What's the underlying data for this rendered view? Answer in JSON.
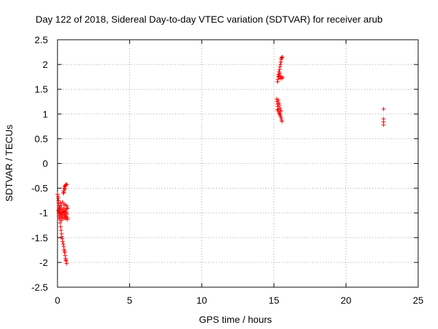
{
  "chart_data": {
    "type": "scatter",
    "title": "Day 122 of 2018, Sidereal Day-to-day VTEC variation (SDTVAR) for receiver arub",
    "xlabel": "GPS time / hours",
    "ylabel": "SDTVAR / TECUs",
    "xlim": [
      0,
      25
    ],
    "ylim": [
      -2.5,
      2.5
    ],
    "xticks": [
      0,
      5,
      10,
      15,
      20,
      25
    ],
    "xtick_labels": [
      "0",
      "5",
      "10",
      "15",
      "20",
      "25"
    ],
    "yticks": [
      -2.5,
      -2,
      -1.5,
      -1,
      -0.5,
      0,
      0.5,
      1,
      1.5,
      2,
      2.5
    ],
    "ytick_labels": [
      "-2.5",
      "-2",
      "-1.5",
      "-1",
      "-0.5",
      "0",
      "0.5",
      "1",
      "1.5",
      "2",
      "2.5"
    ],
    "grid": true,
    "marker": "+",
    "marker_color": "#ff0000",
    "series": [
      {
        "name": "SDTVAR",
        "points": [
          [
            0.0,
            -0.62
          ],
          [
            0.03,
            -0.66
          ],
          [
            0.05,
            -0.7
          ],
          [
            0.07,
            -0.75
          ],
          [
            0.08,
            -0.8
          ],
          [
            0.1,
            -0.85
          ],
          [
            0.12,
            -0.9
          ],
          [
            0.13,
            -0.95
          ],
          [
            0.15,
            -1.0
          ],
          [
            0.17,
            -1.05
          ],
          [
            0.05,
            -0.95
          ],
          [
            0.08,
            -1.0
          ],
          [
            0.1,
            -1.08
          ],
          [
            0.12,
            -1.12
          ],
          [
            0.14,
            -0.98
          ],
          [
            0.16,
            -0.92
          ],
          [
            0.18,
            -0.88
          ],
          [
            0.2,
            -0.95
          ],
          [
            0.22,
            -1.02
          ],
          [
            0.24,
            -1.1
          ],
          [
            0.26,
            -1.15
          ],
          [
            0.28,
            -1.05
          ],
          [
            0.3,
            -0.98
          ],
          [
            0.32,
            -0.93
          ],
          [
            0.34,
            -1.0
          ],
          [
            0.36,
            -1.08
          ],
          [
            0.38,
            -1.12
          ],
          [
            0.4,
            -1.02
          ],
          [
            0.42,
            -0.95
          ],
          [
            0.44,
            -0.9
          ],
          [
            0.46,
            -0.97
          ],
          [
            0.48,
            -1.05
          ],
          [
            0.5,
            -1.1
          ],
          [
            0.52,
            -1.0
          ],
          [
            0.54,
            -0.94
          ],
          [
            0.56,
            -1.06
          ],
          [
            0.58,
            -1.12
          ],
          [
            0.6,
            -1.08
          ],
          [
            0.62,
            -0.98
          ],
          [
            0.64,
            -0.92
          ],
          [
            0.66,
            -1.02
          ],
          [
            0.68,
            -1.1
          ],
          [
            0.7,
            -1.13
          ],
          [
            0.2,
            -0.8
          ],
          [
            0.25,
            -0.85
          ],
          [
            0.35,
            -0.78
          ],
          [
            0.45,
            -0.82
          ],
          [
            0.55,
            -0.84
          ],
          [
            0.65,
            -0.86
          ],
          [
            0.7,
            -0.9
          ],
          [
            0.18,
            -1.2
          ],
          [
            0.22,
            -1.28
          ],
          [
            0.25,
            -1.35
          ],
          [
            0.28,
            -1.42
          ],
          [
            0.3,
            -1.48
          ],
          [
            0.33,
            -1.52
          ],
          [
            0.36,
            -1.58
          ],
          [
            0.4,
            -1.63
          ],
          [
            0.43,
            -1.68
          ],
          [
            0.46,
            -1.74
          ],
          [
            0.5,
            -1.8
          ],
          [
            0.53,
            -1.86
          ],
          [
            0.56,
            -1.92
          ],
          [
            0.6,
            -1.97
          ],
          [
            0.63,
            -2.02
          ],
          [
            0.48,
            -1.77
          ],
          [
            0.58,
            -1.95
          ],
          [
            0.4,
            -0.6
          ],
          [
            0.43,
            -0.55
          ],
          [
            0.46,
            -0.5
          ],
          [
            0.5,
            -0.47
          ],
          [
            0.53,
            -0.45
          ],
          [
            0.56,
            -0.44
          ],
          [
            0.6,
            -0.43
          ],
          [
            0.63,
            -0.42
          ],
          [
            0.45,
            -0.58
          ],
          [
            0.52,
            -0.52
          ],
          [
            15.25,
            1.65
          ],
          [
            15.28,
            1.7
          ],
          [
            15.3,
            1.75
          ],
          [
            15.32,
            1.8
          ],
          [
            15.35,
            1.85
          ],
          [
            15.38,
            1.78
          ],
          [
            15.4,
            1.9
          ],
          [
            15.42,
            1.95
          ],
          [
            15.45,
            2.0
          ],
          [
            15.48,
            2.05
          ],
          [
            15.5,
            2.1
          ],
          [
            15.52,
            2.13
          ],
          [
            15.55,
            2.14
          ],
          [
            15.58,
            2.15
          ],
          [
            15.45,
            1.72
          ],
          [
            15.5,
            1.75
          ],
          [
            15.55,
            1.72
          ],
          [
            15.6,
            1.74
          ],
          [
            15.35,
            1.76
          ],
          [
            15.42,
            1.82
          ],
          [
            15.2,
            1.3
          ],
          [
            15.22,
            1.25
          ],
          [
            15.25,
            1.2
          ],
          [
            15.28,
            1.15
          ],
          [
            15.3,
            1.1
          ],
          [
            15.33,
            1.05
          ],
          [
            15.36,
            1.02
          ],
          [
            15.4,
            1.0
          ],
          [
            15.43,
            0.98
          ],
          [
            15.46,
            0.95
          ],
          [
            15.5,
            0.92
          ],
          [
            15.53,
            0.88
          ],
          [
            15.56,
            0.85
          ],
          [
            15.3,
            1.28
          ],
          [
            15.35,
            1.22
          ],
          [
            15.38,
            1.18
          ],
          [
            15.42,
            1.12
          ],
          [
            15.45,
            1.08
          ],
          [
            15.48,
            1.05
          ],
          [
            15.25,
            1.08
          ],
          [
            22.6,
            1.1
          ],
          [
            22.6,
            0.9
          ],
          [
            22.6,
            0.84
          ],
          [
            22.6,
            0.78
          ]
        ]
      }
    ]
  }
}
